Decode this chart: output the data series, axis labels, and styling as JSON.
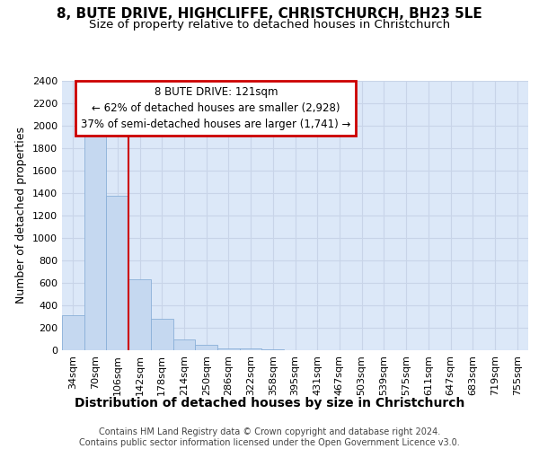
{
  "title_line1": "8, BUTE DRIVE, HIGHCLIFFE, CHRISTCHURCH, BH23 5LE",
  "title_line2": "Size of property relative to detached houses in Christchurch",
  "xlabel": "Distribution of detached houses by size in Christchurch",
  "ylabel": "Number of detached properties",
  "categories": [
    "34sqm",
    "70sqm",
    "106sqm",
    "142sqm",
    "178sqm",
    "214sqm",
    "250sqm",
    "286sqm",
    "322sqm",
    "358sqm",
    "395sqm",
    "431sqm",
    "467sqm",
    "503sqm",
    "539sqm",
    "575sqm",
    "611sqm",
    "647sqm",
    "683sqm",
    "719sqm",
    "755sqm"
  ],
  "values": [
    315,
    1950,
    1380,
    630,
    280,
    95,
    45,
    20,
    15,
    10,
    0,
    0,
    0,
    0,
    0,
    0,
    0,
    0,
    0,
    0,
    0
  ],
  "bar_color": "#c5d8f0",
  "bar_edge_color": "#8ab0d8",
  "vline_x_index": 2.5,
  "vline_color": "#cc0000",
  "annotation_text": "8 BUTE DRIVE: 121sqm\n← 62% of detached houses are smaller (2,928)\n37% of semi-detached houses are larger (1,741) →",
  "annotation_box_facecolor": "#ffffff",
  "annotation_box_edgecolor": "#cc0000",
  "ylim": [
    0,
    2400
  ],
  "yticks": [
    0,
    200,
    400,
    600,
    800,
    1000,
    1200,
    1400,
    1600,
    1800,
    2000,
    2200,
    2400
  ],
  "grid_color": "#c8d4e8",
  "background_color": "#dce8f8",
  "footer_line1": "Contains HM Land Registry data © Crown copyright and database right 2024.",
  "footer_line2": "Contains public sector information licensed under the Open Government Licence v3.0.",
  "title1_fontsize": 11,
  "title2_fontsize": 9.5,
  "xlabel_fontsize": 10,
  "ylabel_fontsize": 9,
  "tick_fontsize": 8,
  "annot_fontsize": 8.5,
  "footer_fontsize": 7
}
